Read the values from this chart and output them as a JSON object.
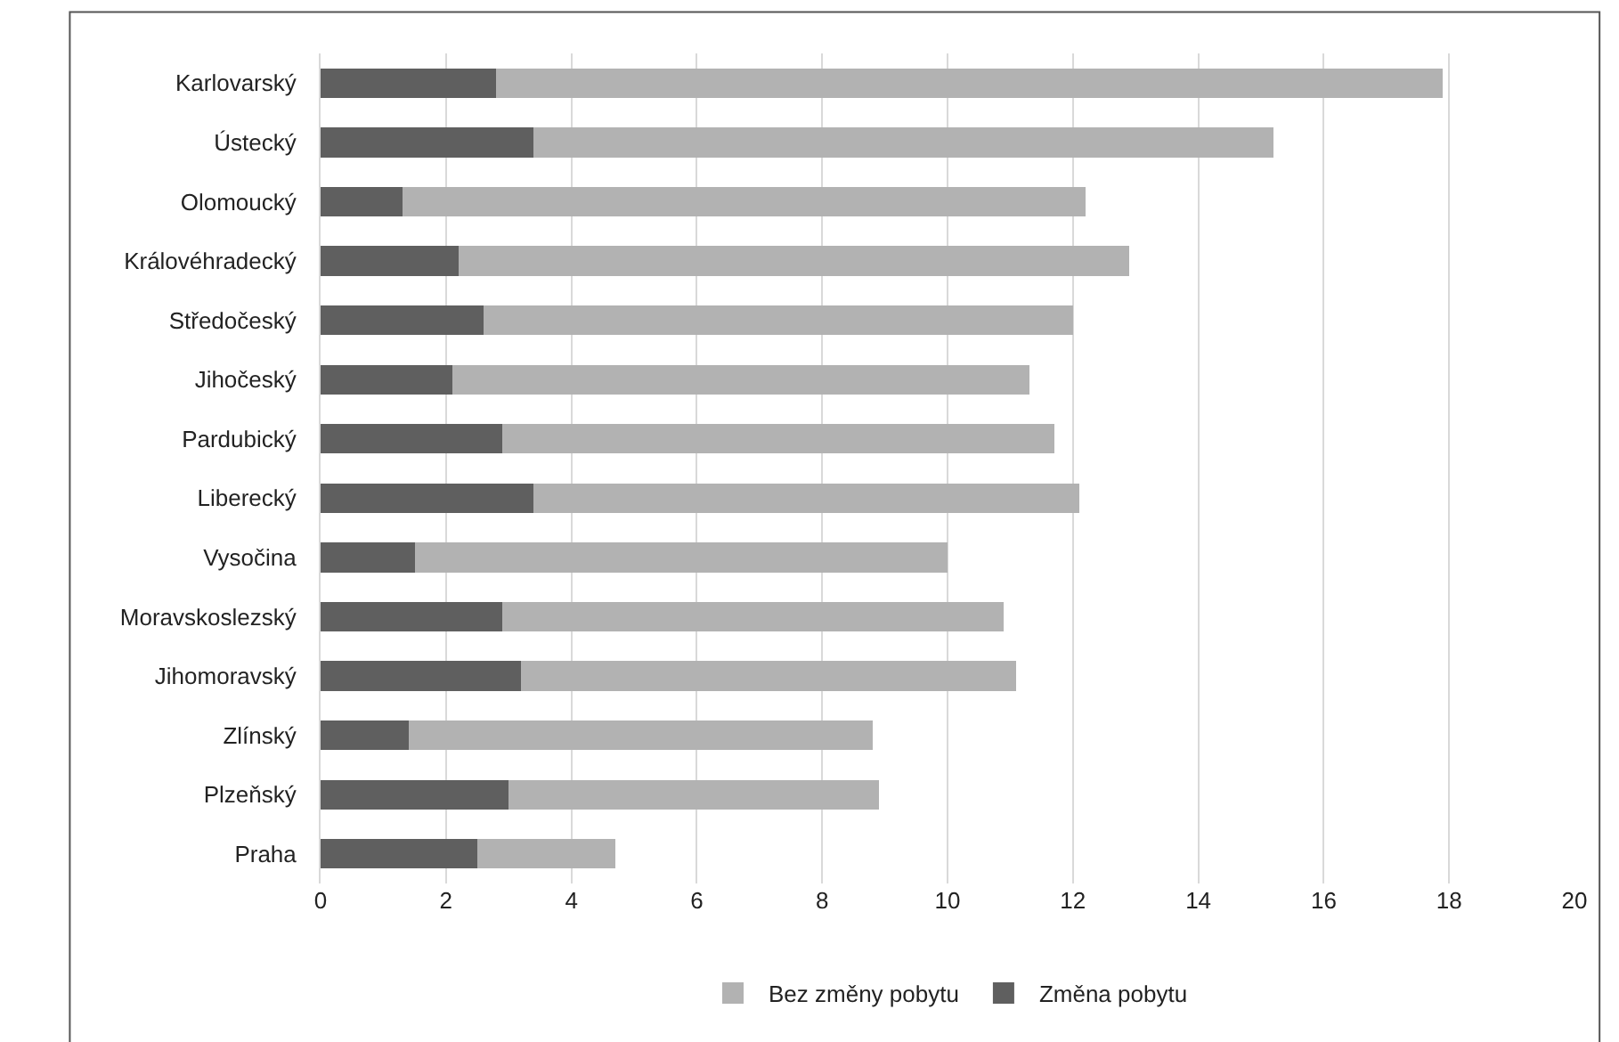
{
  "chart_data": {
    "type": "bar",
    "orientation": "horizontal",
    "stacked": true,
    "categories": [
      "Karlovarský",
      "Ústecký",
      "Olomoucký",
      "Královéhradecký",
      "Středočeský",
      "Jihočeský",
      "Pardubický",
      "Liberecký",
      "Vysočina",
      "Moravskoslezský",
      "Jihomoravský",
      "Zlínský",
      "Plzeňský",
      "Praha"
    ],
    "series": [
      {
        "name": "Změna pobytu",
        "color": "#5f5f5f",
        "values": [
          2.8,
          3.4,
          1.3,
          2.2,
          2.6,
          2.1,
          2.9,
          3.4,
          1.5,
          2.9,
          3.2,
          1.4,
          3.0,
          2.5
        ]
      },
      {
        "name": "Bez změny pobytu",
        "color": "#b2b2b2",
        "values": [
          15.1,
          11.8,
          10.9,
          10.7,
          9.4,
          9.2,
          8.8,
          8.7,
          8.5,
          8.0,
          7.9,
          7.4,
          5.9,
          2.2
        ]
      }
    ],
    "xlim": [
      0,
      20
    ],
    "xticks": [
      0,
      2,
      4,
      6,
      8,
      10,
      12,
      14,
      16,
      18,
      20
    ],
    "grid": "x",
    "legend": "bottom"
  }
}
